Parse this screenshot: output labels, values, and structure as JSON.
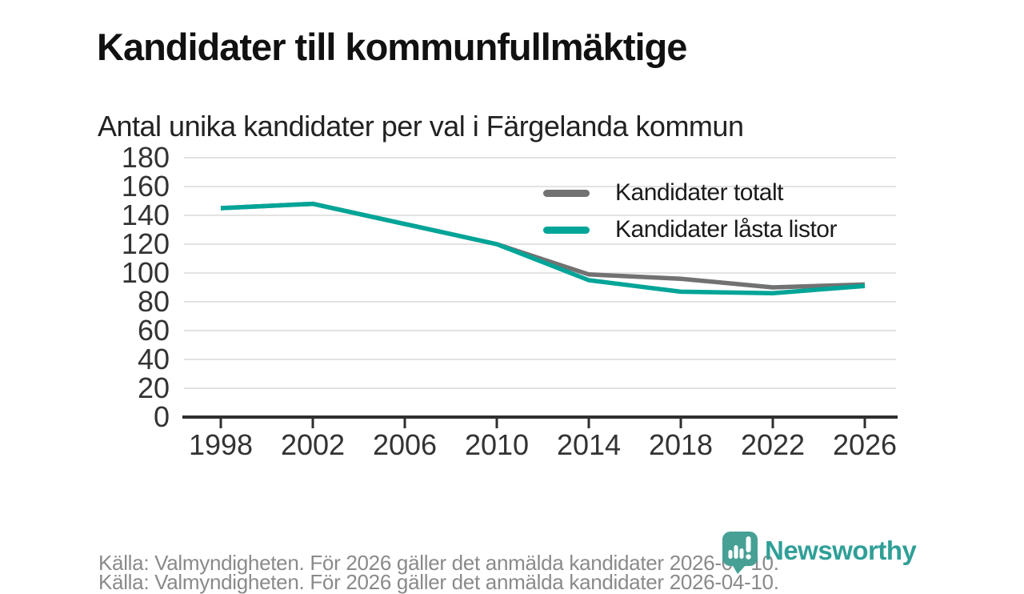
{
  "chart_data": {
    "type": "line",
    "title": "Kandidater till kommunfullmäktige",
    "subtitle": "Antal unika kandidater per val i Färgelanda kommun",
    "categories": [
      "1998",
      "2002",
      "2006",
      "2010",
      "2014",
      "2018",
      "2022",
      "2026"
    ],
    "series": [
      {
        "name": "Kandidater totalt",
        "color": "#727272",
        "values": [
          145,
          148,
          134,
          120,
          99,
          96,
          90,
          92
        ]
      },
      {
        "name": "Kandidater låsta listor",
        "color": "#00a598",
        "values": [
          145,
          148,
          134,
          120,
          95,
          87,
          86,
          91
        ]
      }
    ],
    "xlabel": "",
    "ylabel": "",
    "ylim": [
      0,
      180
    ],
    "ytick_step": 20,
    "grid": true,
    "legend_position": "top-right"
  },
  "footer": {
    "source": "Källa: Valmyndigheten. För 2026 gäller det anmälda kandidater 2026-04-10.",
    "clipped_second_line": "Källa: Valmyndigheten. För 2026 gäller det anmälda kandidater 2026-04-10.",
    "brand": "Newsworthy"
  },
  "colors": {
    "accent_teal": "#00a598",
    "line_gray": "#727272",
    "grid_line": "#e3e3e3",
    "axis_line": "#2f2f2f",
    "title_text": "#111111",
    "subtitle_text": "#222222",
    "tick_text": "#333333",
    "muted_text": "#8a8a8a",
    "logo_teal": "#46a094",
    "logo_text_teal": "#2f9f97"
  }
}
